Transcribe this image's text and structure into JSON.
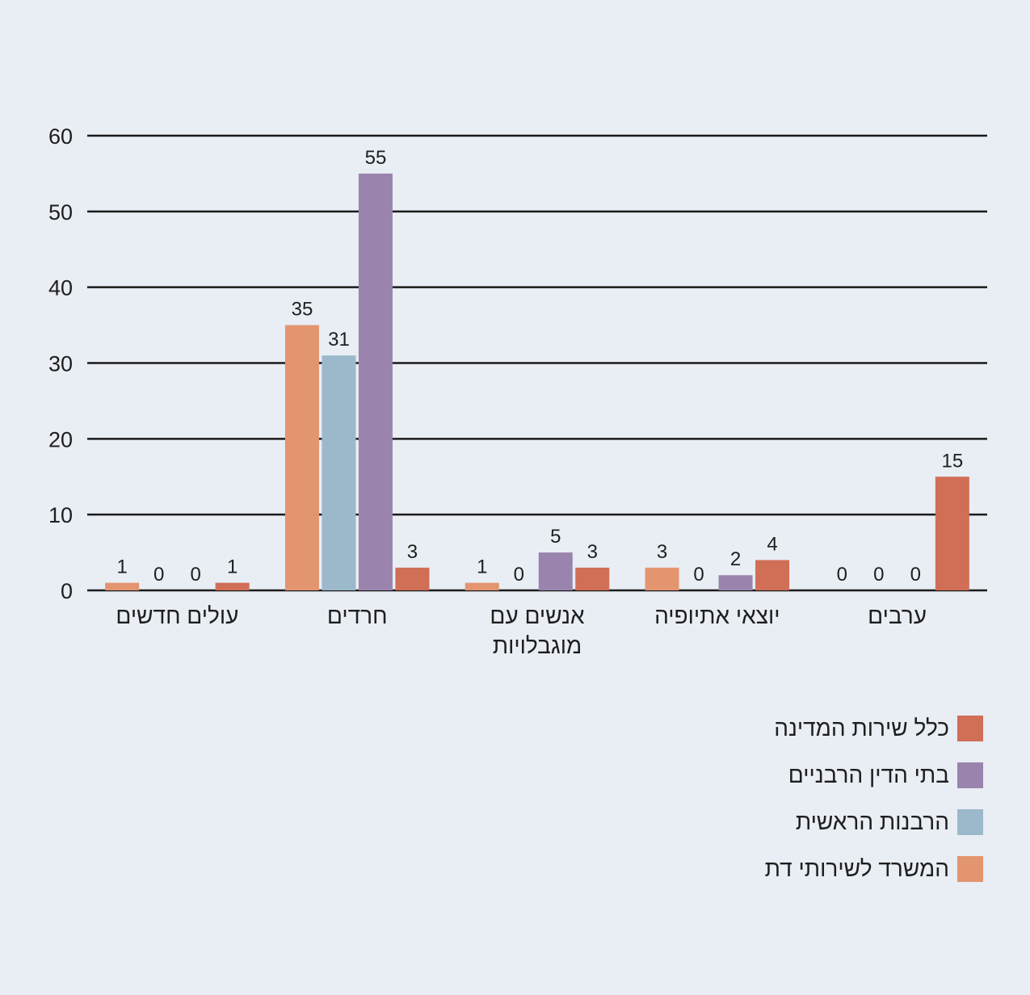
{
  "chart_data": {
    "type": "bar",
    "categories": [
      "ערבים",
      "יוצאי אתיופיה",
      "אנשים עם מוגבלויות",
      "חרדים",
      "עולים חדשים"
    ],
    "category_lines": [
      [
        "ערבים"
      ],
      [
        "יוצאי אתיופיה"
      ],
      [
        "אנשים עם",
        "מוגבלויות"
      ],
      [
        "חרדים"
      ],
      [
        "עולים חדשים"
      ]
    ],
    "series": [
      {
        "name": "המשרד לשירותי דת",
        "color": "#e3956f",
        "values": [
          0,
          3,
          1,
          35,
          1
        ]
      },
      {
        "name": "הרבנות הראשית",
        "color": "#9bb9cb",
        "values": [
          0,
          0,
          0,
          31,
          0
        ]
      },
      {
        "name": "בתי הדין הרבניים",
        "color": "#9a84ad",
        "values": [
          0,
          2,
          5,
          55,
          0
        ]
      },
      {
        "name": "כלל שירות המדינה",
        "color": "#d06e56",
        "values": [
          15,
          4,
          3,
          3,
          1
        ]
      }
    ],
    "legend_order": [
      3,
      2,
      1,
      0
    ],
    "yticks": [
      0,
      10,
      20,
      30,
      40,
      50,
      60
    ],
    "ylim": [
      0,
      60
    ],
    "grid": true,
    "legend_position": "bottom-right"
  }
}
